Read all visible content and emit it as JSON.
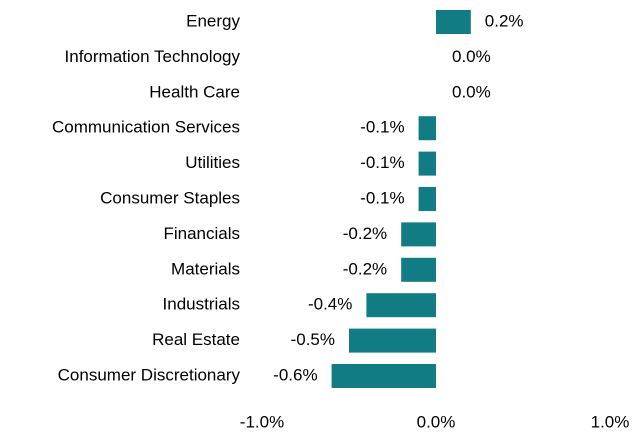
{
  "chart_data": {
    "type": "bar",
    "orientation": "horizontal",
    "categories": [
      "Energy",
      "Information Technology",
      "Health Care",
      "Communication Services",
      "Utilities",
      "Consumer Staples",
      "Financials",
      "Materials",
      "Industrials",
      "Real Estate",
      "Consumer Discretionary"
    ],
    "values": [
      0.2,
      0.0,
      0.0,
      -0.1,
      -0.1,
      -0.1,
      -0.2,
      -0.2,
      -0.4,
      -0.5,
      -0.6
    ],
    "value_labels": [
      "0.2%",
      "0.0%",
      "0.0%",
      "-0.1%",
      "-0.1%",
      "-0.1%",
      "-0.2%",
      "-0.2%",
      "-0.4%",
      "-0.5%",
      "-0.6%"
    ],
    "color": "#127c84",
    "xlim": [
      -1.0,
      1.0
    ],
    "xticks": [
      {
        "value": -1.0,
        "label": "-1.0%"
      },
      {
        "value": 0.0,
        "label": "0.0%"
      },
      {
        "value": 1.0,
        "label": "1.0%"
      }
    ],
    "grid": false
  }
}
